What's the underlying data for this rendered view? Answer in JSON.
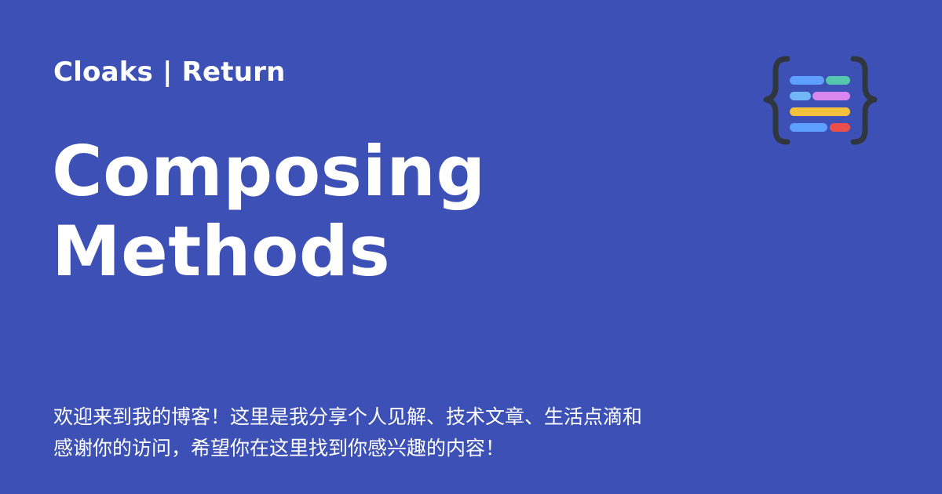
{
  "site": {
    "name": "Cloaks | Return"
  },
  "post": {
    "title_lines": [
      "Composing",
      "Methods"
    ]
  },
  "description": {
    "lines": [
      "欢迎来到我的博客！这里是我分享个人见解、技术文章、生活点滴和",
      "感谢你的访问，希望你在这里找到你感兴趣的内容！"
    ]
  },
  "logo": {
    "icon": "code-braces-logo-icon",
    "colors": [
      "#5ea0ff",
      "#53c6ad",
      "#73b7f6",
      "#d887ee",
      "#f4c13d",
      "#5ea0ff",
      "#ea4f4a",
      "#30363d"
    ]
  },
  "theme": {
    "background": "#3d50b6",
    "text": "#ffffff"
  }
}
